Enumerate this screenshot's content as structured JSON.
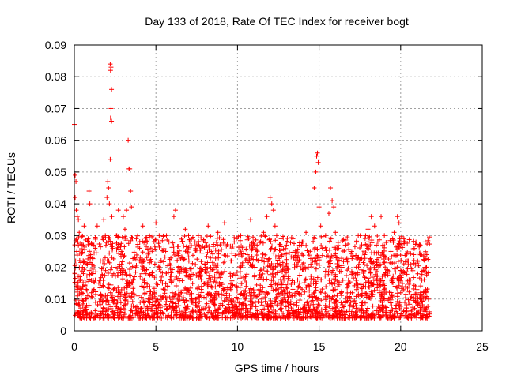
{
  "chart_data": {
    "type": "scatter",
    "title": "Day 133 of 2018, Rate Of TEC Index for receiver bogt",
    "xlabel": "GPS time / hours",
    "ylabel": "ROTI / TECUs",
    "xlim": [
      0,
      25
    ],
    "ylim": [
      0,
      0.09
    ],
    "xticks": [
      0,
      5,
      10,
      15,
      20,
      25
    ],
    "xtick_labels": [
      "0",
      "5",
      "10",
      "15",
      "20",
      "25"
    ],
    "yticks": [
      0,
      0.01,
      0.02,
      0.03,
      0.04,
      0.05,
      0.06,
      0.07,
      0.08,
      0.09
    ],
    "ytick_labels": [
      "0",
      "0.01",
      "0.02",
      "0.03",
      "0.04",
      "0.05",
      "0.06",
      "0.07",
      "0.08",
      "0.09"
    ],
    "grid": true,
    "marker": "+",
    "color": "#ff0000",
    "points": [
      [
        0.0,
        0.065
      ],
      [
        0.05,
        0.049
      ],
      [
        0.1,
        0.047
      ],
      [
        0.05,
        0.042
      ],
      [
        0.12,
        0.038
      ],
      [
        0.18,
        0.036
      ],
      [
        0.25,
        0.035
      ],
      [
        0.3,
        0.031
      ],
      [
        0.22,
        0.028
      ],
      [
        0.15,
        0.025
      ],
      [
        0.08,
        0.022
      ],
      [
        0.03,
        0.018
      ],
      [
        0.1,
        0.014
      ],
      [
        0.2,
        0.011
      ],
      [
        0.28,
        0.009
      ],
      [
        0.35,
        0.006
      ],
      [
        0.4,
        0.004
      ],
      [
        0.45,
        0.012
      ],
      [
        0.5,
        0.02
      ],
      [
        0.55,
        0.027
      ],
      [
        0.6,
        0.033
      ],
      [
        0.65,
        0.016
      ],
      [
        0.7,
        0.01
      ],
      [
        0.75,
        0.008
      ],
      [
        0.8,
        0.021
      ],
      [
        0.85,
        0.029
      ],
      [
        0.9,
        0.044
      ],
      [
        0.95,
        0.04
      ],
      [
        1.0,
        0.024
      ],
      [
        1.05,
        0.012
      ],
      [
        1.1,
        0.018
      ],
      [
        1.2,
        0.027
      ],
      [
        1.3,
        0.009
      ],
      [
        1.4,
        0.033
      ],
      [
        1.5,
        0.015
      ],
      [
        1.6,
        0.022
      ],
      [
        1.7,
        0.011
      ],
      [
        1.8,
        0.035
      ],
      [
        1.9,
        0.03
      ],
      [
        2.0,
        0.042
      ],
      [
        2.05,
        0.047
      ],
      [
        2.1,
        0.045
      ],
      [
        2.15,
        0.04
      ],
      [
        2.2,
        0.084
      ],
      [
        2.22,
        0.082
      ],
      [
        2.25,
        0.083
      ],
      [
        2.28,
        0.076
      ],
      [
        2.25,
        0.07
      ],
      [
        2.22,
        0.067
      ],
      [
        2.28,
        0.066
      ],
      [
        2.2,
        0.054
      ],
      [
        2.3,
        0.036
      ],
      [
        2.35,
        0.026
      ],
      [
        2.4,
        0.013
      ],
      [
        2.5,
        0.02
      ],
      [
        2.6,
        0.03
      ],
      [
        2.7,
        0.038
      ],
      [
        2.8,
        0.012
      ],
      [
        2.9,
        0.025
      ],
      [
        3.0,
        0.036
      ],
      [
        3.1,
        0.032
      ],
      [
        3.2,
        0.038
      ],
      [
        3.3,
        0.06
      ],
      [
        3.35,
        0.051
      ],
      [
        3.4,
        0.051
      ],
      [
        3.45,
        0.044
      ],
      [
        3.5,
        0.039
      ],
      [
        3.6,
        0.016
      ],
      [
        3.7,
        0.023
      ],
      [
        3.8,
        0.029
      ],
      [
        3.9,
        0.011
      ],
      [
        4.0,
        0.026
      ],
      [
        4.2,
        0.033
      ],
      [
        4.4,
        0.018
      ],
      [
        4.6,
        0.022
      ],
      [
        4.8,
        0.009
      ],
      [
        5.0,
        0.034
      ],
      [
        5.2,
        0.03
      ],
      [
        5.4,
        0.015
      ],
      [
        5.6,
        0.025
      ],
      [
        5.8,
        0.028
      ],
      [
        6.0,
        0.012
      ],
      [
        6.1,
        0.036
      ],
      [
        6.2,
        0.038
      ],
      [
        6.4,
        0.02
      ],
      [
        6.6,
        0.023
      ],
      [
        6.8,
        0.032
      ],
      [
        7.0,
        0.03
      ],
      [
        7.1,
        0.017
      ],
      [
        7.2,
        0.009
      ],
      [
        7.25,
        0.006
      ],
      [
        7.4,
        0.028
      ],
      [
        7.6,
        0.03
      ],
      [
        7.8,
        0.014
      ],
      [
        8.0,
        0.021
      ],
      [
        8.2,
        0.033
      ],
      [
        8.4,
        0.025
      ],
      [
        8.6,
        0.011
      ],
      [
        8.8,
        0.031
      ],
      [
        9.0,
        0.018
      ],
      [
        9.2,
        0.034
      ],
      [
        9.4,
        0.013
      ],
      [
        9.6,
        0.022
      ],
      [
        9.8,
        0.028
      ],
      [
        10.0,
        0.01
      ],
      [
        10.2,
        0.03
      ],
      [
        10.4,
        0.016
      ],
      [
        10.6,
        0.024
      ],
      [
        10.8,
        0.035
      ],
      [
        11.0,
        0.012
      ],
      [
        11.2,
        0.027
      ],
      [
        11.4,
        0.019
      ],
      [
        11.6,
        0.031
      ],
      [
        11.8,
        0.036
      ],
      [
        12.0,
        0.042
      ],
      [
        12.1,
        0.04
      ],
      [
        12.2,
        0.038
      ],
      [
        12.3,
        0.033
      ],
      [
        12.4,
        0.03
      ],
      [
        12.6,
        0.021
      ],
      [
        12.8,
        0.017
      ],
      [
        13.0,
        0.027
      ],
      [
        13.2,
        0.012
      ],
      [
        13.4,
        0.029
      ],
      [
        13.6,
        0.023
      ],
      [
        13.8,
        0.015
      ],
      [
        14.0,
        0.028
      ],
      [
        14.2,
        0.031
      ],
      [
        14.4,
        0.014
      ],
      [
        14.6,
        0.022
      ],
      [
        14.7,
        0.045
      ],
      [
        14.8,
        0.05
      ],
      [
        14.85,
        0.055
      ],
      [
        14.9,
        0.056
      ],
      [
        14.95,
        0.053
      ],
      [
        15.0,
        0.039
      ],
      [
        15.1,
        0.033
      ],
      [
        15.2,
        0.026
      ],
      [
        15.4,
        0.03
      ],
      [
        15.6,
        0.037
      ],
      [
        15.7,
        0.045
      ],
      [
        15.8,
        0.041
      ],
      [
        15.9,
        0.039
      ],
      [
        16.0,
        0.031
      ],
      [
        16.2,
        0.026
      ],
      [
        16.4,
        0.02
      ],
      [
        16.6,
        0.027
      ],
      [
        16.8,
        0.016
      ],
      [
        17.0,
        0.025
      ],
      [
        17.2,
        0.018
      ],
      [
        17.4,
        0.03
      ],
      [
        17.6,
        0.011
      ],
      [
        17.8,
        0.024
      ],
      [
        18.0,
        0.032
      ],
      [
        18.2,
        0.036
      ],
      [
        18.4,
        0.033
      ],
      [
        18.6,
        0.028
      ],
      [
        18.8,
        0.036
      ],
      [
        19.0,
        0.03
      ],
      [
        19.2,
        0.019
      ],
      [
        19.4,
        0.025
      ],
      [
        19.6,
        0.031
      ],
      [
        19.8,
        0.036
      ],
      [
        19.9,
        0.034
      ],
      [
        20.0,
        0.012
      ],
      [
        20.2,
        0.029
      ],
      [
        20.4,
        0.022
      ],
      [
        20.6,
        0.016
      ],
      [
        20.8,
        0.024
      ],
      [
        21.0,
        0.013
      ],
      [
        21.2,
        0.027
      ],
      [
        21.4,
        0.019
      ],
      [
        21.5,
        0.028
      ],
      [
        21.6,
        0.024
      ],
      [
        21.7,
        0.01
      ],
      [
        21.75,
        0.006
      ]
    ]
  }
}
